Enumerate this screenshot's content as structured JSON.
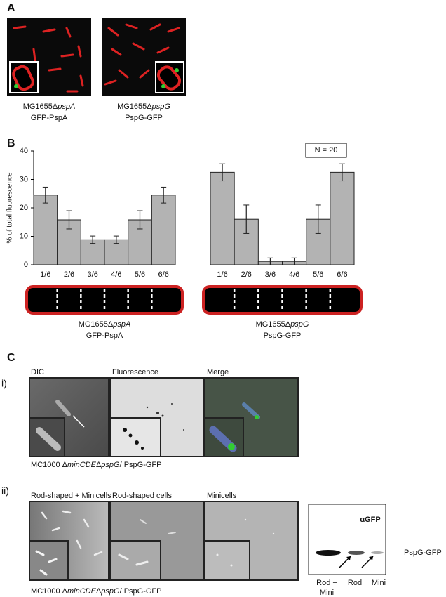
{
  "panel_a": {
    "label": "A",
    "images": [
      {
        "strain": "MG1655Δ",
        "gene": "pspA",
        "protein": "GFP-PspA"
      },
      {
        "strain": "MG1655Δ",
        "gene": "pspG",
        "protein": "PspG-GFP"
      }
    ]
  },
  "panel_b": {
    "label": "B"
  },
  "chart_data": [
    {
      "type": "bar",
      "ylabel": "% of total fluorescence",
      "categories": [
        "1/6",
        "2/6",
        "3/6",
        "4/6",
        "5/6",
        "6/6"
      ],
      "values": [
        24.5,
        15.8,
        8.8,
        8.8,
        15.8,
        24.5
      ],
      "errors": [
        2.8,
        3.2,
        1.3,
        1.3,
        3.2,
        2.8
      ],
      "color": "#b3b3b3",
      "ylim": [
        0,
        40
      ],
      "yticks": [
        0,
        10,
        20,
        30,
        40
      ],
      "caption": {
        "strain": "MG1655Δ",
        "gene": "pspA",
        "protein": "GFP-PspA"
      }
    },
    {
      "type": "bar",
      "annotation": "N = 20",
      "categories": [
        "1/6",
        "2/6",
        "3/6",
        "4/6",
        "5/6",
        "6/6"
      ],
      "values": [
        32.5,
        16,
        1.2,
        1.2,
        16,
        32.5
      ],
      "errors": [
        3,
        5,
        1.2,
        1.2,
        5,
        3
      ],
      "color": "#b3b3b3",
      "ylim": [
        0,
        40
      ],
      "caption": {
        "strain": "MG1655Δ",
        "gene": "pspG",
        "protein": "PspG-GFP"
      }
    }
  ],
  "panel_c": {
    "label": "C",
    "row_i": {
      "label": "i)",
      "images": [
        "DIC",
        "Fluorescence",
        "Merge"
      ],
      "caption": {
        "prefix": "MC1000 Δ",
        "gene1": "minCDE",
        "mid": "Δ",
        "gene2": "pspG",
        "suffix": "/ PspG-GFP"
      }
    },
    "row_ii": {
      "label": "ii)",
      "images": [
        "Rod-shaped + Minicells",
        "Rod-shaped cells",
        "Minicells"
      ],
      "blot": {
        "antibody": "αGFP",
        "band": "PspG-GFP",
        "lanes": [
          [
            "Rod +",
            "Mini"
          ],
          [
            "Rod"
          ],
          [
            "Mini"
          ]
        ]
      },
      "caption": {
        "prefix": "MC1000 Δ",
        "gene1": "minCDE",
        "mid": "Δ",
        "gene2": "pspG",
        "suffix": "/ PspG-GFP"
      }
    }
  }
}
